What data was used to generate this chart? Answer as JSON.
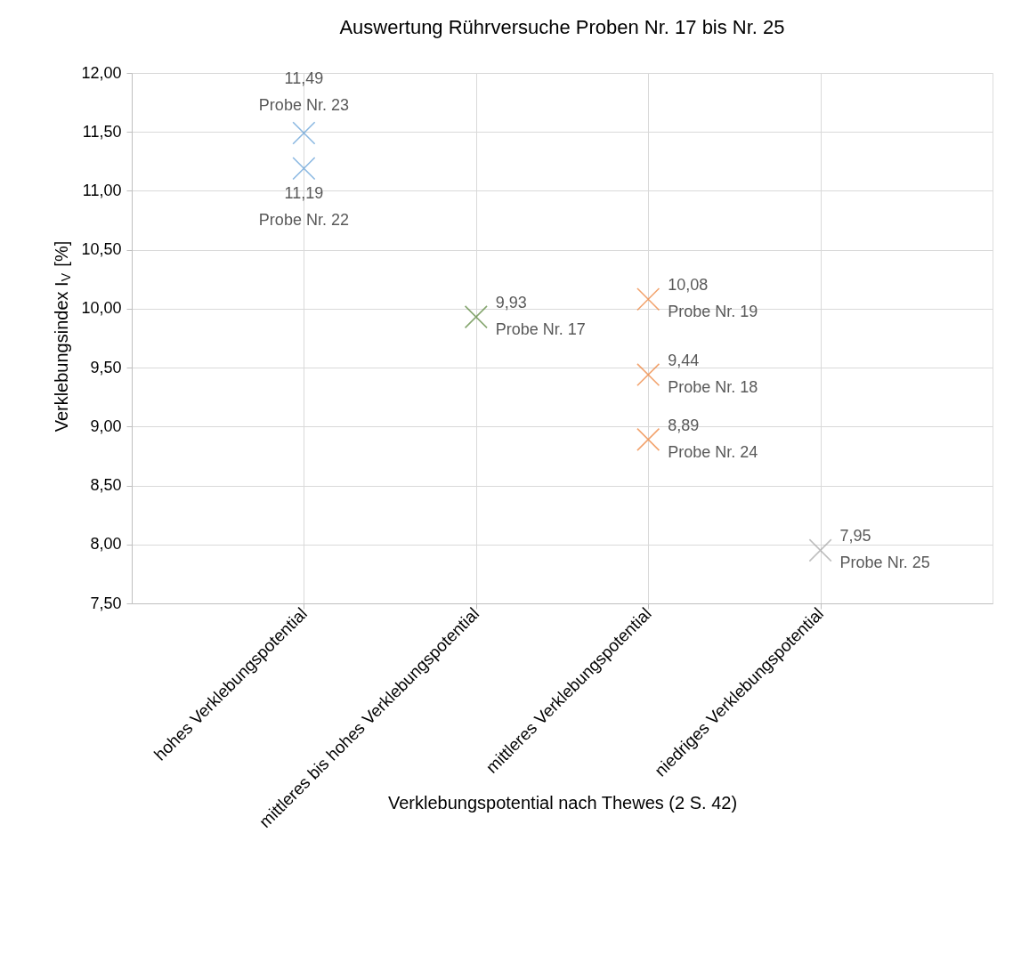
{
  "chart_data": {
    "type": "scatter",
    "title": "Auswertung Rührversuche Proben Nr. 17 bis Nr. 25",
    "xlabel": "Verklebungspotential nach Thewes (2 S. 42)",
    "ylabel": "Verklebungsindex I$_{V}$ [%]",
    "categories": [
      "hohes Verklebungspotential",
      "mittleres bis hohes Verklebungspotential",
      "mittleres Verklebungspotential",
      "niedriges Verklebungspotential"
    ],
    "series": [
      {
        "color": "#5b9bd5",
        "x": [
          "hohes Verklebungspotential",
          "hohes Verklebungspotential"
        ],
        "values": [
          11.49,
          11.19
        ],
        "value_labels": [
          "11,49\nProbe Nr. 23",
          "11,19\nProbe Nr. 22"
        ]
      },
      {
        "color": "#548235",
        "x": [
          "mittleres bis hohes Verklebungspotential"
        ],
        "values": [
          9.93
        ],
        "value_labels": [
          "9,93\nProbe Nr. 17"
        ]
      },
      {
        "color": "#ed7d31",
        "x": [
          "mittleres Verklebungspotential",
          "mittleres Verklebungspotential",
          "mittleres Verklebungspotential"
        ],
        "values": [
          10.08,
          9.44,
          8.89
        ],
        "value_labels": [
          "10,08\nProbe Nr. 19",
          "9,44\nProbe Nr. 18",
          "8,89\nProbe Nr. 24"
        ]
      },
      {
        "color": "#a5a5a5",
        "x": [
          "niedriges Verklebungspotential"
        ],
        "values": [
          7.95
        ],
        "value_labels": [
          "7,95\nProbe Nr. 25"
        ]
      }
    ],
    "ylim": [
      7.5,
      12
    ],
    "yticks": [
      {
        "value": 7.5,
        "label": "7,50"
      },
      {
        "value": 8,
        "label": "8,00"
      },
      {
        "value": 8.5,
        "label": "8,50"
      },
      {
        "value": 9,
        "label": "9,00"
      },
      {
        "value": 9.5,
        "label": "9,50"
      },
      {
        "value": 10,
        "label": "10,00"
      },
      {
        "value": 10.5,
        "label": "10,50"
      },
      {
        "value": 11,
        "label": "11,00"
      },
      {
        "value": 11.5,
        "label": "11,50"
      },
      {
        "value": 12,
        "label": "12,00"
      }
    ],
    "grid": true,
    "legend": false,
    "marker": "cross"
  }
}
